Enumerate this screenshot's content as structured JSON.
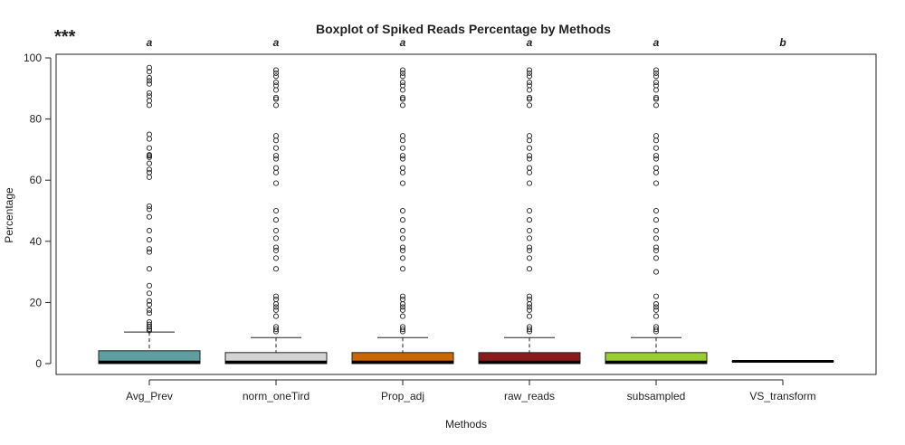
{
  "chart_data": {
    "type": "boxplot",
    "title": "Boxplot of Spiked Reads Percentage by Methods",
    "xlabel": "Methods",
    "ylabel": "Percentage",
    "significance_marker": "***",
    "ylim": [
      0,
      100
    ],
    "yticks": [
      0,
      20,
      40,
      60,
      80,
      100
    ],
    "grid": false,
    "legend": "none",
    "categories": [
      "Avg_Prev",
      "norm_oneTird",
      "Prop_adj",
      "raw_reads",
      "subsampled",
      "VS_transform"
    ],
    "group_letters": [
      "a",
      "a",
      "a",
      "a",
      "a",
      "b"
    ],
    "colors": [
      "#5f9ea0",
      "#d3d3d3",
      "#cc6600",
      "#8b1a1a",
      "#9acd32",
      "#000000"
    ],
    "boxes": [
      {
        "min": 0,
        "q1": 0,
        "median": 0.5,
        "q3": 4.2,
        "max": 10.3
      },
      {
        "min": 0,
        "q1": 0,
        "median": 0.5,
        "q3": 3.6,
        "max": 8.5
      },
      {
        "min": 0,
        "q1": 0,
        "median": 0.5,
        "q3": 3.6,
        "max": 8.5
      },
      {
        "min": 0,
        "q1": 0,
        "median": 0.5,
        "q3": 3.6,
        "max": 8.5
      },
      {
        "min": 0,
        "q1": 0,
        "median": 0.5,
        "q3": 3.6,
        "max": 8.5
      },
      {
        "min": 0.6,
        "q1": 0.7,
        "median": 0.75,
        "q3": 0.8,
        "max": 0.9
      }
    ],
    "outliers": [
      [
        10.8,
        11.3,
        12,
        12.8,
        13.6,
        16.5,
        17.5,
        19.3,
        20.5,
        23,
        25.5,
        31,
        36.5,
        37.5,
        40.5,
        43.5,
        48,
        50.5,
        51.5,
        61,
        62.5,
        63.5,
        65.5,
        67.5,
        68,
        68.3,
        70.5,
        73.5,
        75,
        84.5,
        86,
        87.5,
        88.5,
        91.5,
        92.5,
        93.5,
        95.5,
        96.8
      ],
      [
        10.5,
        11.2,
        12,
        15.5,
        17.5,
        18.5,
        19.5,
        21,
        22,
        31,
        34.5,
        37,
        38,
        41,
        43.5,
        47,
        50,
        59,
        62.5,
        64,
        67,
        68,
        70.5,
        73,
        74.5,
        84.5,
        86.5,
        87,
        89.5,
        91,
        92,
        94,
        95,
        96
      ],
      [
        10.5,
        11.2,
        12,
        15.5,
        17.5,
        18.5,
        19.5,
        21,
        22,
        31,
        34.5,
        37,
        38,
        41,
        43.5,
        47,
        50,
        59,
        62.5,
        64,
        67,
        68,
        70.5,
        73,
        74.5,
        84.5,
        86.5,
        87,
        89.5,
        91,
        92,
        94,
        95,
        96
      ],
      [
        10.5,
        11.2,
        12,
        15.5,
        17.5,
        18.5,
        19.5,
        21,
        22,
        31,
        34.5,
        37,
        38,
        41,
        43.5,
        47,
        50,
        59,
        62.5,
        64,
        67,
        68,
        70.5,
        73,
        74.5,
        84.5,
        86.5,
        87,
        89.5,
        91,
        92,
        94,
        95,
        96
      ],
      [
        10.5,
        11.2,
        12,
        15.5,
        17.5,
        18.5,
        19.5,
        22,
        30,
        34.5,
        37,
        38,
        41,
        43.5,
        47,
        50,
        59,
        62.5,
        64,
        67,
        68,
        70.5,
        73,
        74.5,
        84.5,
        86.5,
        87,
        89.5,
        91,
        92,
        94,
        95,
        96
      ],
      []
    ]
  }
}
